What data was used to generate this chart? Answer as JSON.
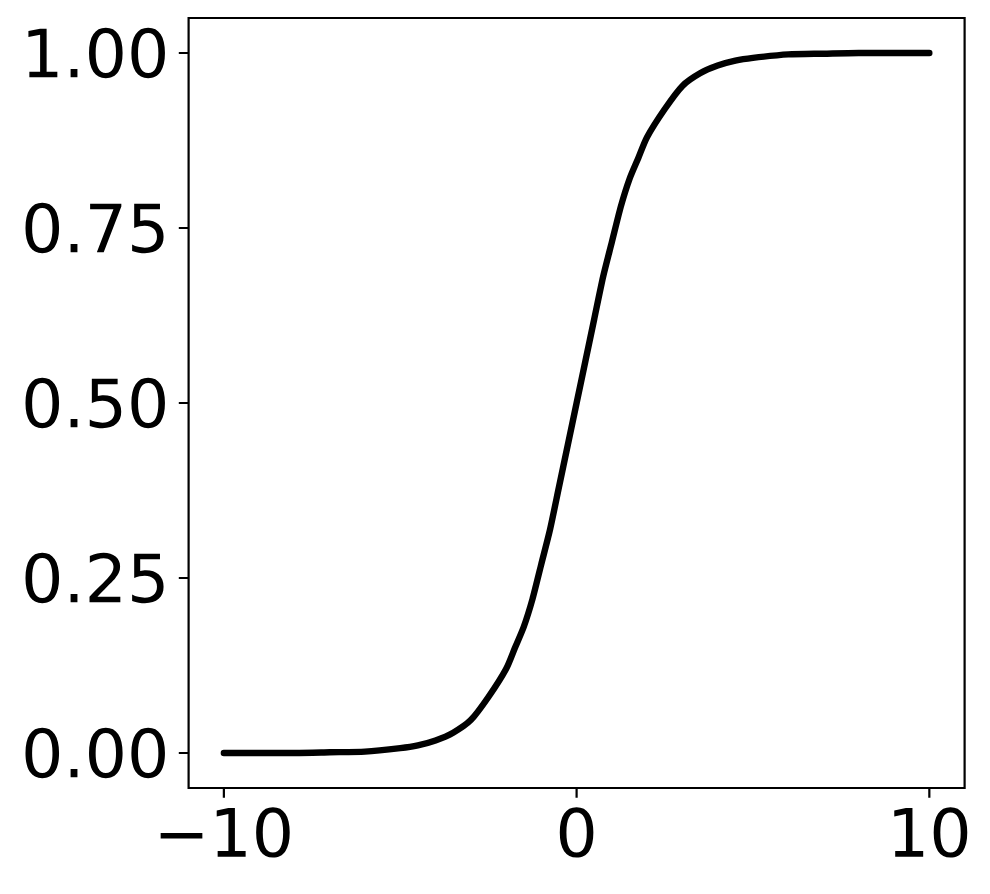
{
  "chart_data": {
    "type": "line",
    "x": [
      -10,
      -8,
      -7,
      -6,
      -5,
      -4.5,
      -4,
      -3.5,
      -3,
      -2.5,
      -2,
      -1.75,
      -1.5,
      -1.25,
      -1,
      -0.75,
      -0.5,
      -0.25,
      0,
      0.25,
      0.5,
      0.75,
      1,
      1.25,
      1.5,
      1.75,
      2,
      2.5,
      3,
      3.5,
      4,
      4.5,
      5,
      6,
      7,
      8,
      10
    ],
    "values": [
      0.0,
      0.0,
      0.001,
      0.002,
      0.007,
      0.011,
      0.018,
      0.029,
      0.047,
      0.08,
      0.12,
      0.15,
      0.18,
      0.22,
      0.27,
      0.32,
      0.38,
      0.44,
      0.5,
      0.56,
      0.62,
      0.68,
      0.73,
      0.78,
      0.82,
      0.85,
      0.88,
      0.92,
      0.953,
      0.971,
      0.982,
      0.989,
      0.993,
      0.998,
      0.999,
      1.0,
      1.0
    ],
    "color": "#000000",
    "line_style": "solid",
    "xlim": [
      -11,
      11
    ],
    "ylim": [
      -0.05,
      1.05
    ],
    "xticks": [
      {
        "value": -10,
        "label": "−10"
      },
      0,
      10
    ],
    "yticks": [
      {
        "value": 0,
        "label": "0.00"
      },
      {
        "value": 0.25,
        "label": "0.25"
      },
      {
        "value": 0.5,
        "label": "0.50"
      },
      {
        "value": 0.75,
        "label": "0.75"
      },
      {
        "value": 1,
        "label": "1.00"
      }
    ]
  }
}
